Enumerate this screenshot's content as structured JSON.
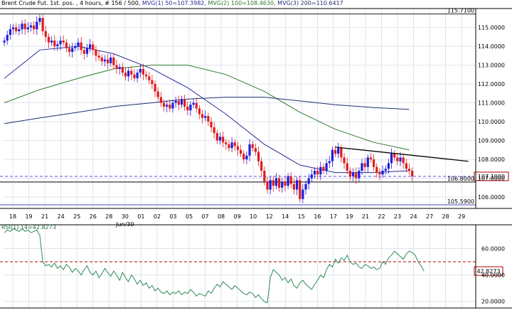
{
  "header": {
    "instrument": "Brent Crude Fut. 1st. pos. , 4 hours, # 156 / 500,",
    "ma1": "MVG(1) 50=107.3982,",
    "ma2": "MVG(2) 100=108.4630,",
    "ma3": "MVG(3) 200=110.6417"
  },
  "colors": {
    "up": "#1c1ce0",
    "down": "#e01c1c",
    "ma50": "#2a2a9a",
    "ma100": "#2f7a2f",
    "ma200": "#1e2f6e",
    "rsi": "#2e8b57",
    "grid": "#cfd3e6",
    "price_box": "#b00000"
  },
  "chart_data": [
    {
      "type": "candlestick",
      "title": "Brent Crude Fut. 1st. pos., 4 hours",
      "ylim": [
        105.4,
        116.0
      ],
      "yticks": [
        106.0,
        107.0,
        108.0,
        109.0,
        110.0,
        111.0,
        112.0,
        113.0,
        114.0,
        115.0
      ],
      "ytick_labels": [
        "106.0000",
        "107.0000",
        "108.0000",
        "109.0000",
        "110.0000",
        "111.0000",
        "112.0000",
        "113.0000",
        "114.0000",
        "115.0000"
      ],
      "x_day_labels": [
        "18",
        "19",
        "21",
        "24",
        "25",
        "26",
        "28",
        "30",
        "01",
        "02",
        "03",
        "05",
        "07",
        "08",
        "09",
        "10",
        "12",
        "14",
        "15",
        "16",
        "17",
        "19",
        "21",
        "22",
        "23",
        "24",
        "27",
        "28",
        "29"
      ],
      "x_month_label": "Jun/30",
      "grid": true,
      "close_series": [
        114.3,
        114.6,
        114.9,
        115.0,
        114.8,
        114.9,
        115.2,
        114.9,
        115.0,
        115.1,
        114.9,
        115.3,
        115.5,
        114.8,
        114.5,
        114.2,
        114.3,
        114.0,
        114.1,
        114.3,
        114.2,
        113.9,
        113.7,
        113.9,
        114.0,
        114.2,
        113.8,
        113.6,
        113.9,
        114.1,
        113.8,
        113.5,
        113.4,
        113.2,
        113.3,
        113.1,
        113.4,
        113.0,
        112.8,
        112.9,
        112.6,
        112.4,
        112.7,
        112.5,
        112.3,
        112.6,
        112.8,
        112.5,
        112.4,
        112.2,
        112.0,
        111.6,
        111.3,
        111.0,
        110.8,
        110.9,
        110.7,
        111.0,
        111.1,
        110.9,
        111.2,
        110.8,
        110.6,
        110.9,
        111.0,
        110.7,
        110.4,
        110.2,
        110.3,
        110.0,
        109.7,
        109.4,
        109.0,
        109.2,
        108.9,
        108.8,
        108.6,
        108.9,
        108.7,
        108.5,
        108.3,
        108.0,
        108.2,
        108.8,
        108.6,
        108.4,
        107.9,
        107.4,
        106.8,
        106.4,
        106.9,
        106.6,
        107.0,
        106.5,
        106.8,
        106.6,
        107.1,
        106.7,
        106.4,
        106.9,
        105.9,
        106.4,
        106.7,
        107.0,
        107.2,
        107.4,
        107.2,
        107.6,
        107.4,
        107.8,
        107.9,
        108.5,
        108.3,
        108.6,
        108.1,
        107.8,
        107.4,
        107.1,
        107.3,
        107.0,
        107.4,
        107.8,
        107.6,
        108.1,
        108.0,
        107.6,
        107.3,
        107.2,
        107.4,
        107.5,
        107.8,
        108.3,
        108.1,
        107.9,
        108.1,
        107.8,
        107.5,
        107.4,
        107.1
      ],
      "moving_averages": [
        {
          "name": "MVG(1) 50",
          "points": [
            [
              0,
              112.3
            ],
            [
              12,
              113.8
            ],
            [
              25,
              114.0
            ],
            [
              37,
              113.6
            ],
            [
              50,
              112.8
            ],
            [
              62,
              111.8
            ],
            [
              75,
              110.4
            ],
            [
              88,
              108.8
            ],
            [
              100,
              107.7
            ],
            [
              112,
              107.3
            ],
            [
              125,
              107.3
            ],
            [
              137,
              107.4
            ]
          ]
        },
        {
          "name": "MVG(2) 100",
          "points": [
            [
              0,
              111.0
            ],
            [
              12,
              111.7
            ],
            [
              25,
              112.3
            ],
            [
              37,
              112.8
            ],
            [
              50,
              113.0
            ],
            [
              62,
              113.0
            ],
            [
              75,
              112.5
            ],
            [
              88,
              111.6
            ],
            [
              100,
              110.5
            ],
            [
              112,
              109.6
            ],
            [
              125,
              108.9
            ],
            [
              137,
              108.5
            ]
          ]
        },
        {
          "name": "MVG(3) 200",
          "points": [
            [
              0,
              109.9
            ],
            [
              12,
              110.2
            ],
            [
              25,
              110.5
            ],
            [
              37,
              110.8
            ],
            [
              50,
              111.0
            ],
            [
              62,
              111.2
            ],
            [
              75,
              111.3
            ],
            [
              88,
              111.3
            ],
            [
              100,
              111.1
            ],
            [
              112,
              110.9
            ],
            [
              125,
              110.75
            ],
            [
              137,
              110.65
            ]
          ]
        }
      ],
      "trendline": {
        "x": [
          112,
          157
        ],
        "y": [
          108.65,
          107.9
        ]
      },
      "levels": [
        {
          "value": 115.71,
          "label": "115.7100",
          "style": "solid"
        },
        {
          "value": 107.1,
          "label": "107.1000",
          "style": "dashed"
        },
        {
          "value": 106.8,
          "label": "106.8000",
          "style": "solid"
        },
        {
          "value": 105.59,
          "label": "105.5900",
          "style": "solid"
        }
      ]
    },
    {
      "type": "line",
      "title": "RSI(1) 14=42.8273",
      "ylim": [
        15,
        78
      ],
      "yticks": [
        20.0,
        40.0,
        60.0
      ],
      "ytick_labels": [
        "20.0000",
        "40.0000",
        "60.0000"
      ],
      "reference_line": 50,
      "last_value_label": "42.8273",
      "grid": true,
      "values": [
        72,
        74,
        73,
        75,
        74,
        73,
        75,
        73,
        74,
        72,
        73,
        74,
        70,
        50,
        47,
        48,
        46,
        49,
        45,
        47,
        44,
        48,
        46,
        42,
        45,
        43,
        40,
        44,
        47,
        42,
        40,
        43,
        38,
        41,
        45,
        42,
        39,
        43,
        40,
        36,
        42,
        38,
        35,
        40,
        37,
        33,
        36,
        32,
        34,
        30,
        32,
        28,
        30,
        27,
        26,
        28,
        25,
        27,
        26,
        28,
        25,
        27,
        26,
        29,
        27,
        24,
        26,
        25,
        24,
        28,
        26,
        30,
        33,
        31,
        35,
        33,
        31,
        29,
        32,
        30,
        28,
        26,
        25,
        27,
        26,
        23,
        25,
        22,
        20,
        19,
        38,
        44,
        42,
        40,
        36,
        38,
        34,
        37,
        32,
        30,
        34,
        36,
        33,
        31,
        29,
        33,
        36,
        40,
        38,
        44,
        48,
        46,
        52,
        49,
        53,
        51,
        55,
        50,
        48,
        49,
        46,
        45,
        48,
        47,
        45,
        46,
        44,
        45,
        50,
        48,
        53,
        55,
        58,
        56,
        54,
        52,
        56,
        58,
        57,
        55,
        50,
        47,
        43
      ]
    }
  ]
}
